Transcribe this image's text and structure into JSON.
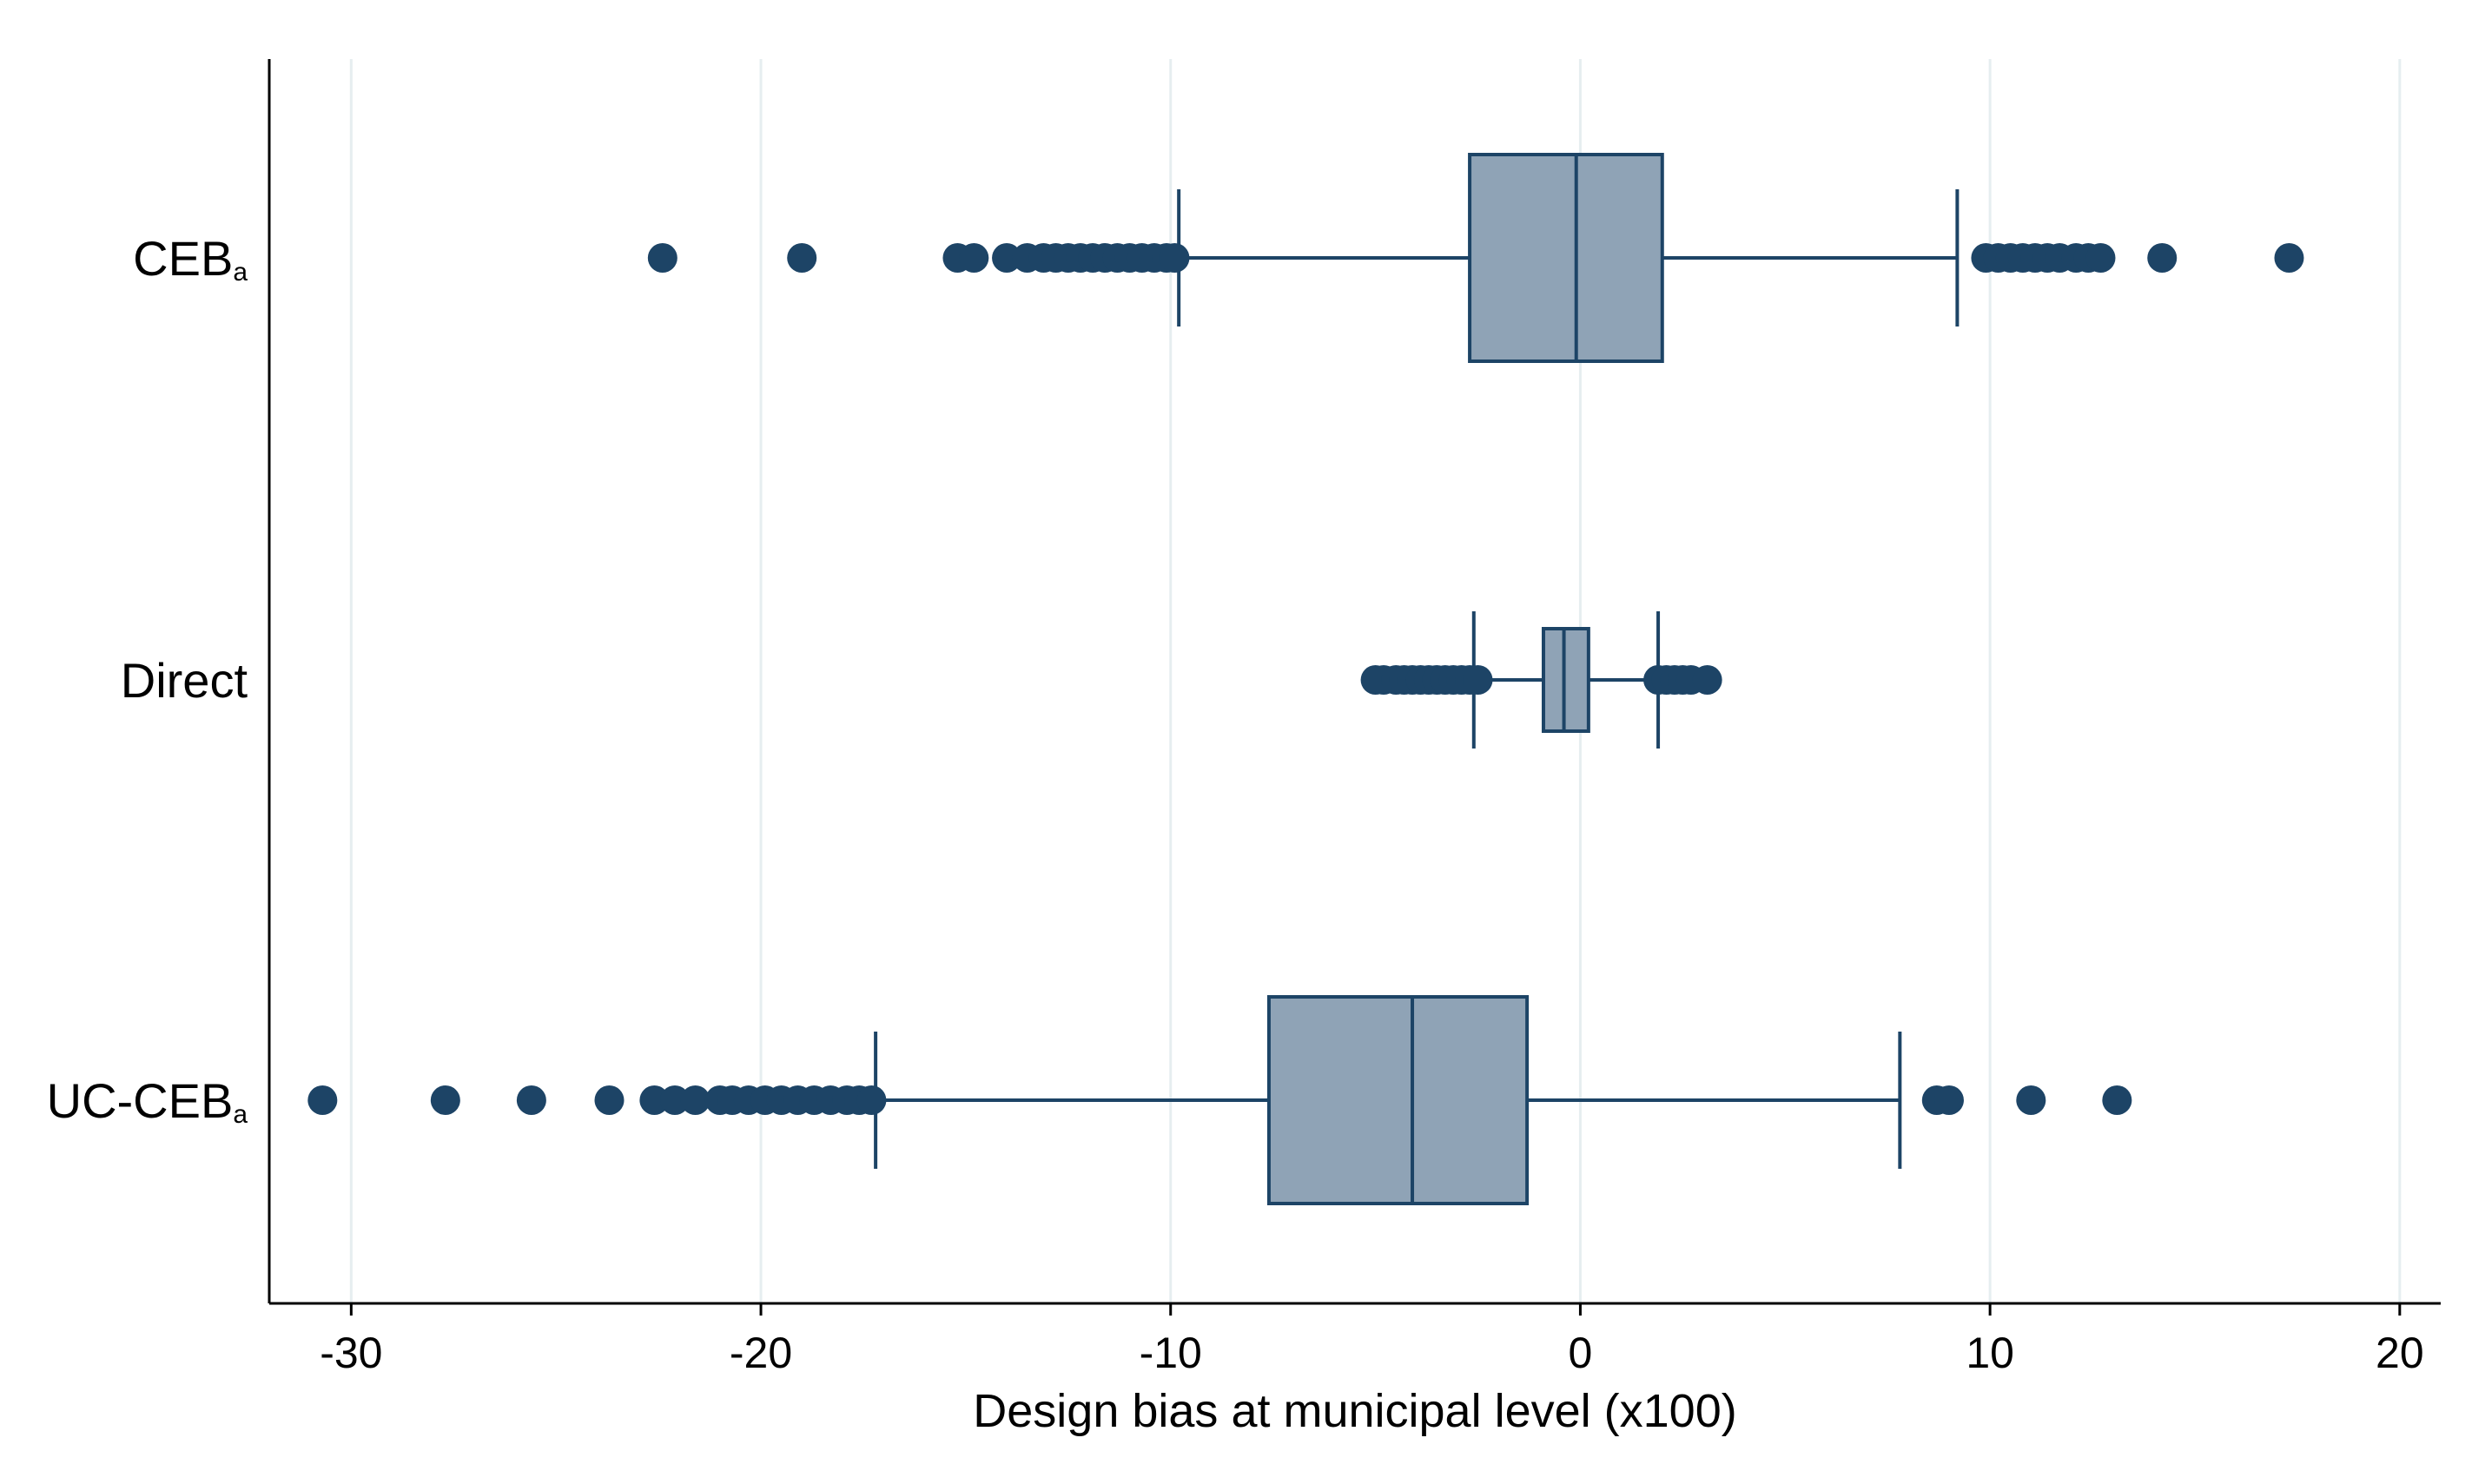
{
  "chart_data": {
    "type": "boxplot",
    "orientation": "horizontal",
    "xlabel": "Design bias at municipal level (x100)",
    "xlim": [
      -32,
      21
    ],
    "xticks": [
      -30,
      -20,
      -10,
      0,
      10,
      20
    ],
    "xtick_labels": [
      "-30",
      "-20",
      "-10",
      "0",
      "10",
      "20"
    ],
    "grid": "vertical",
    "colors": {
      "box_fill": "#8fa3b6",
      "stroke": "#1d4466",
      "outlier": "#1d4466",
      "grid": "#e6eef0"
    },
    "categories": [
      {
        "label_main": "CEB",
        "label_sub": "a",
        "whisker_low": -9.8,
        "q1": -2.7,
        "median": -0.1,
        "q3": 2.0,
        "whisker_high": 9.2,
        "outliers": [
          -22.4,
          -19.0,
          -15.2,
          -14.8,
          -14.0,
          -13.5,
          -13.1,
          -12.8,
          -12.5,
          -12.2,
          -11.9,
          -11.6,
          -11.3,
          -11.0,
          -10.7,
          -10.4,
          -10.1,
          -9.9,
          9.9,
          10.2,
          10.5,
          10.8,
          11.1,
          11.4,
          11.7,
          12.1,
          12.4,
          12.7,
          14.2,
          17.3
        ]
      },
      {
        "label_main": "Direct",
        "label_sub": "",
        "whisker_low": -2.6,
        "q1": -0.9,
        "median": -0.4,
        "q3": 0.2,
        "whisker_high": 1.9,
        "outliers": [
          -5.0,
          -4.8,
          -4.5,
          -4.3,
          -4.1,
          -3.9,
          -3.7,
          -3.5,
          -3.3,
          -3.1,
          -2.9,
          -2.7,
          -2.5,
          1.9,
          2.1,
          2.3,
          2.5,
          2.7,
          3.1
        ]
      },
      {
        "label_main": "UC-CEB",
        "label_sub": "a",
        "whisker_low": -17.2,
        "q1": -7.6,
        "median": -4.1,
        "q3": -1.3,
        "whisker_high": 7.8,
        "outliers": [
          -30.7,
          -27.7,
          -25.6,
          -23.7,
          -22.6,
          -22.1,
          -21.6,
          -21.0,
          -20.7,
          -20.3,
          -19.9,
          -19.5,
          -19.1,
          -18.7,
          -18.3,
          -17.9,
          -17.6,
          -17.3,
          8.7,
          9.0,
          11.0,
          13.1
        ]
      }
    ]
  }
}
